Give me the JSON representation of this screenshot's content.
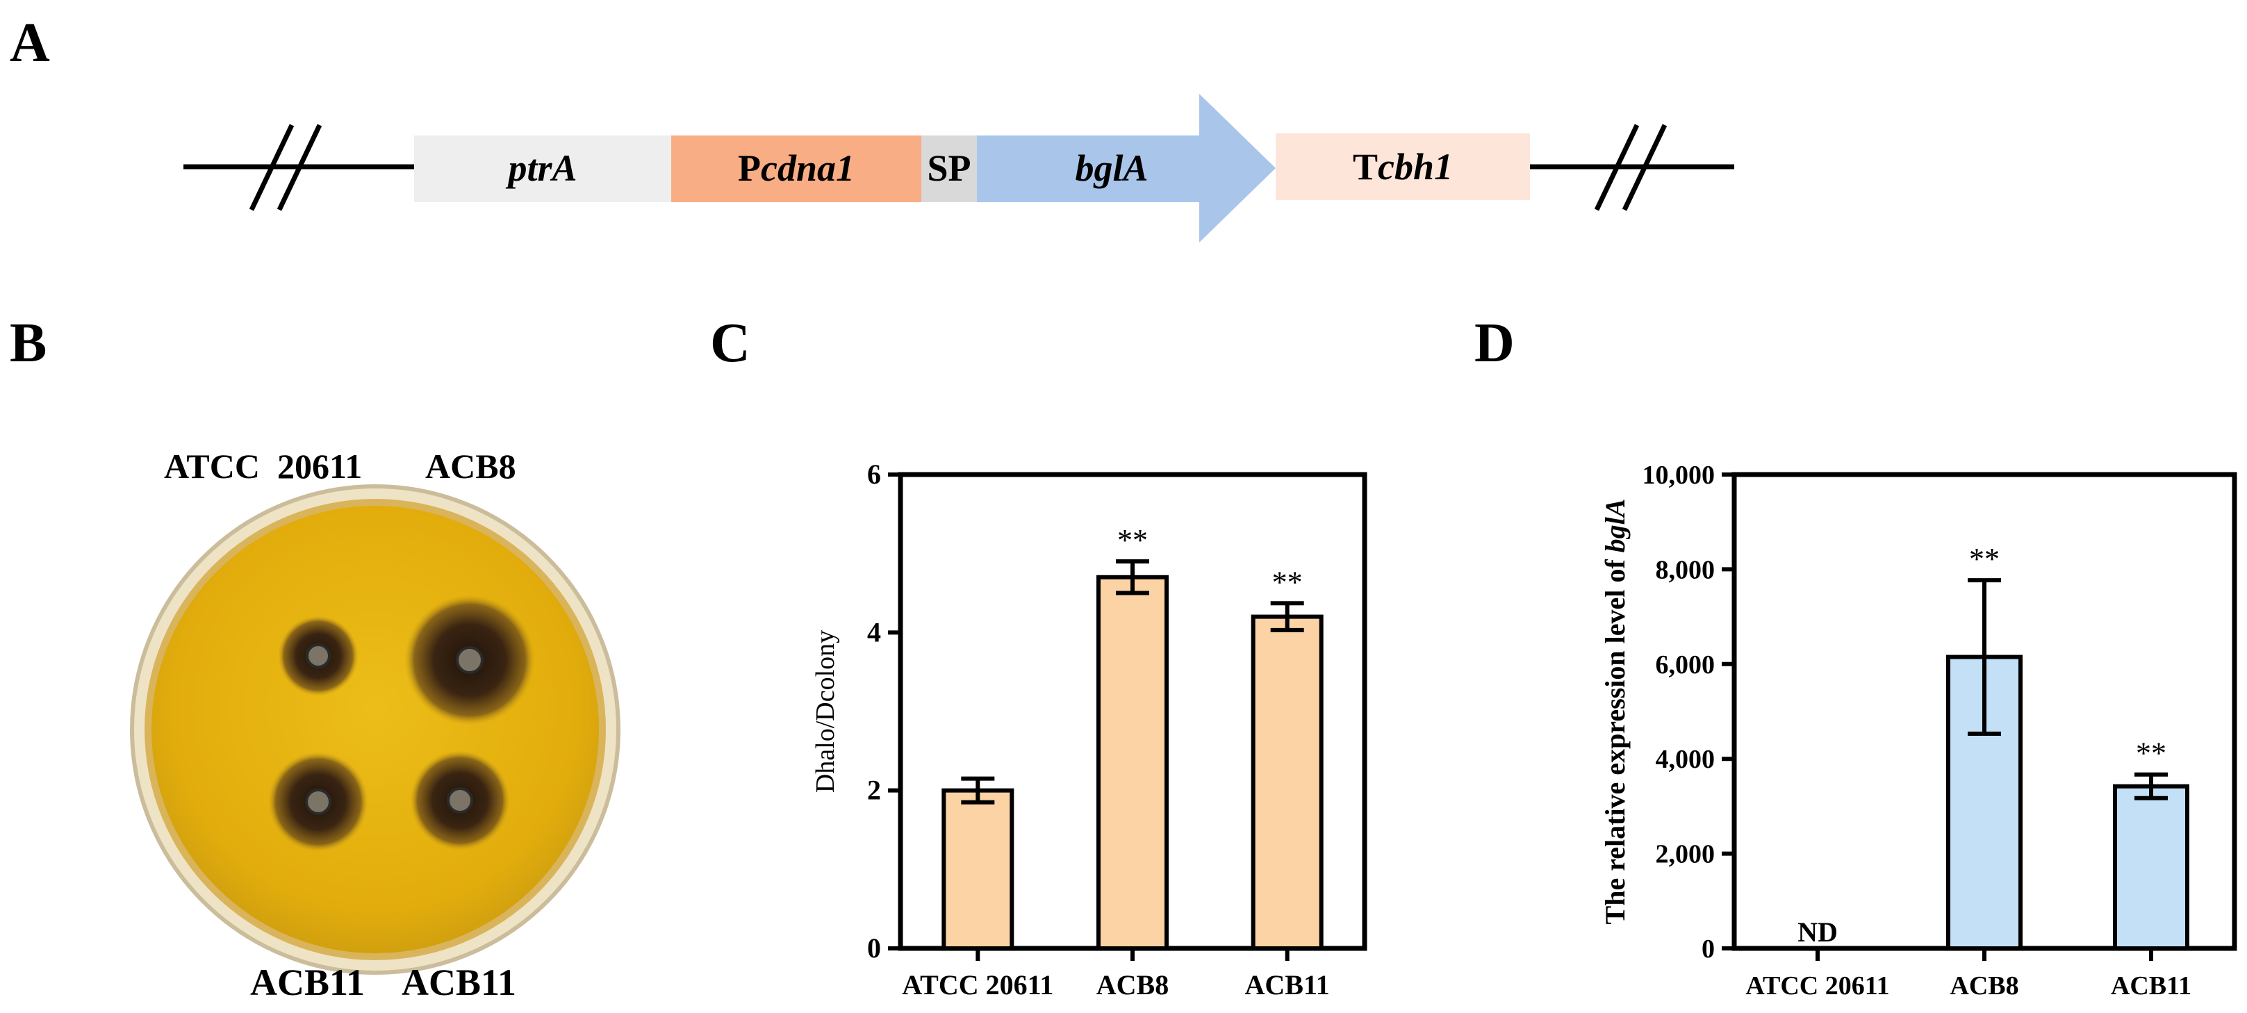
{
  "colors": {
    "ptrA": "#eeeeee",
    "pcdna1": "#f9ad84",
    "sp": "#d9d9d9",
    "bglA": "#a9c6ea",
    "tcbh1": "#fde5d9",
    "bar_c": "#fcd3a4",
    "bar_d": "#c3e0f7",
    "plate_yellow": "#e8b50e",
    "halo": "#3a2412"
  },
  "panels": {
    "a": "A",
    "b": "B",
    "c": "C",
    "d": "D"
  },
  "construct": {
    "ptrA": {
      "italic": "ptrA"
    },
    "pcdna1": {
      "prefix": "P",
      "italic": "cdna1"
    },
    "sp": {
      "text": "SP"
    },
    "bglA": {
      "italic": "bglA"
    },
    "tcbh1": {
      "prefix": "T",
      "italic": "cbh1"
    }
  },
  "plate": {
    "top_left": "ATCC  20611",
    "top_right": "ACB8",
    "bottom_left": "ACB11",
    "bottom_right": "ACB11"
  },
  "chart_data": [
    {
      "panel": "C",
      "type": "bar",
      "categories": [
        "ATCC 20611",
        "ACB8",
        "ACB11"
      ],
      "values": [
        2.0,
        4.7,
        4.2
      ],
      "errors": [
        0.15,
        0.2,
        0.17
      ],
      "significance": [
        "",
        "**",
        "**"
      ],
      "ylabel": "Dhalo/Dcolony",
      "ylim": [
        0,
        6
      ],
      "yticks": [
        0,
        2,
        4,
        6
      ],
      "ytick_labels": [
        "0",
        "2",
        "4",
        "6"
      ],
      "grid": false
    },
    {
      "panel": "D",
      "type": "bar",
      "categories": [
        "ATCC 20611",
        "ACB8",
        "ACB11"
      ],
      "values": [
        0,
        6150,
        3420
      ],
      "errors": [
        0,
        1620,
        250
      ],
      "significance": [
        "ND",
        "**",
        "**"
      ],
      "ylabel": {
        "prefix": "The relative expression level of ",
        "italic": "bglA"
      },
      "ylim": [
        0,
        10000
      ],
      "yticks": [
        0,
        2000,
        4000,
        6000,
        8000,
        10000
      ],
      "ytick_labels": [
        "0",
        "2,000",
        "4,000",
        "6,000",
        "8,000",
        "10,000"
      ],
      "grid": false
    }
  ]
}
